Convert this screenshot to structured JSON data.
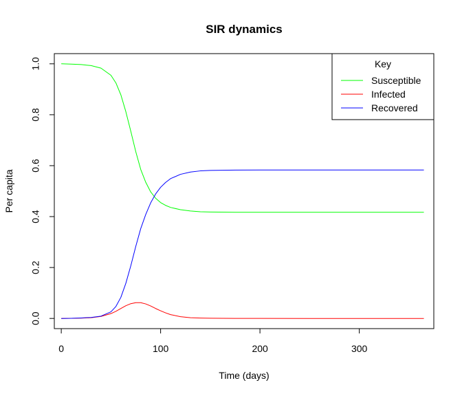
{
  "chart_data": {
    "type": "line",
    "title": "SIR dynamics",
    "xlabel": "Time (days)",
    "ylabel": "Per capita",
    "xlim": [
      -7,
      375
    ],
    "ylim": [
      -0.04,
      1.04
    ],
    "xticks": [
      0,
      100,
      200,
      300
    ],
    "yticks": [
      0.0,
      0.2,
      0.4,
      0.6,
      0.8,
      1.0
    ],
    "xtick_labels": [
      "0",
      "100",
      "200",
      "300"
    ],
    "ytick_labels": [
      "0.0",
      "0.2",
      "0.4",
      "0.6",
      "0.8",
      "1.0"
    ],
    "grid": false,
    "legend": {
      "title": "Key",
      "position": "top-right"
    },
    "series": [
      {
        "name": "Susceptible",
        "color": "#00ff00",
        "x": [
          0,
          10,
          20,
          30,
          40,
          50,
          55,
          60,
          65,
          70,
          75,
          80,
          85,
          90,
          95,
          100,
          105,
          110,
          120,
          130,
          140,
          150,
          175,
          200,
          250,
          300,
          365
        ],
        "y": [
          1.0,
          0.999,
          0.997,
          0.993,
          0.983,
          0.955,
          0.925,
          0.878,
          0.812,
          0.735,
          0.655,
          0.585,
          0.535,
          0.497,
          0.472,
          0.455,
          0.444,
          0.436,
          0.427,
          0.422,
          0.419,
          0.418,
          0.417,
          0.417,
          0.417,
          0.417,
          0.417
        ]
      },
      {
        "name": "Infected",
        "color": "#ff0000",
        "x": [
          0,
          10,
          20,
          30,
          40,
          50,
          55,
          60,
          65,
          70,
          75,
          80,
          85,
          90,
          95,
          100,
          105,
          110,
          120,
          130,
          140,
          150,
          175,
          200,
          250,
          300,
          365
        ],
        "y": [
          0.0,
          0.0005,
          0.001,
          0.003,
          0.008,
          0.019,
          0.028,
          0.039,
          0.05,
          0.058,
          0.062,
          0.062,
          0.057,
          0.049,
          0.039,
          0.03,
          0.022,
          0.015,
          0.007,
          0.003,
          0.0015,
          0.0008,
          0.0002,
          0.0001,
          0.0,
          0.0,
          0.0
        ]
      },
      {
        "name": "Recovered",
        "color": "#0000ff",
        "x": [
          0,
          10,
          20,
          30,
          40,
          50,
          55,
          60,
          65,
          70,
          75,
          80,
          85,
          90,
          95,
          100,
          105,
          110,
          120,
          130,
          140,
          150,
          175,
          200,
          250,
          300,
          365
        ],
        "y": [
          0.0,
          0.0005,
          0.002,
          0.004,
          0.009,
          0.026,
          0.047,
          0.083,
          0.138,
          0.207,
          0.283,
          0.353,
          0.408,
          0.454,
          0.489,
          0.515,
          0.534,
          0.549,
          0.566,
          0.575,
          0.5795,
          0.5812,
          0.5828,
          0.5829,
          0.583,
          0.583,
          0.583
        ]
      }
    ]
  }
}
